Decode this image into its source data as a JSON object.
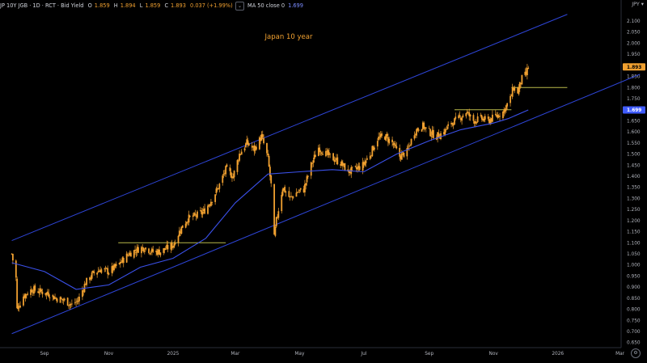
{
  "header": {
    "symbol": "JP 10Y JGB · 1D · RCT · Bid Yield",
    "open_label": "O",
    "open": "1.859",
    "high_label": "H",
    "high": "1.894",
    "low_label": "L",
    "low": "1.859",
    "close_label": "C",
    "close": "1.893",
    "change": "0.037 (+1.99%)"
  },
  "indicator": {
    "label": "MA 50 close 0",
    "value": "1.699"
  },
  "currency_label": "JPY",
  "colors": {
    "background": "#000000",
    "candle": "#f0a030",
    "channel": "#2e45d8",
    "ma": "#3a50e8",
    "support": "#b9b94a",
    "title": "#f0a030",
    "price_badge_bg": "#f0a030",
    "ma_badge_bg": "#3f5bff"
  },
  "chart_data": {
    "type": "candlestick",
    "title": "Japan 10 year",
    "x_ticks": [
      "Sep",
      "Nov",
      "2025",
      "Mar",
      "May",
      "Jul",
      "Sep",
      "Nov",
      "2026",
      "Mar"
    ],
    "y_ticks": [
      "0.650",
      "0.700",
      "0.750",
      "0.800",
      "0.850",
      "0.900",
      "0.950",
      "1.000",
      "1.050",
      "1.100",
      "1.150",
      "1.200",
      "1.250",
      "1.300",
      "1.350",
      "1.400",
      "1.450",
      "1.500",
      "1.550",
      "1.600",
      "1.650",
      "1.700",
      "1.750",
      "1.800",
      "1.850",
      "1.900",
      "1.950",
      "2.000",
      "2.050",
      "2.100",
      "2.150"
    ],
    "ylim": [
      0.63,
      2.17
    ],
    "last_price_badge": "1.893",
    "ma_badge": "1.699",
    "close_series": [
      [
        "2024-08-01",
        1.05
      ],
      [
        "2024-08-05",
        0.94
      ],
      [
        "2024-08-06",
        0.8
      ],
      [
        "2024-08-12",
        0.86
      ],
      [
        "2024-08-20",
        0.89
      ],
      [
        "2024-08-28",
        0.88
      ],
      [
        "2024-09-05",
        0.87
      ],
      [
        "2024-09-12",
        0.85
      ],
      [
        "2024-09-20",
        0.84
      ],
      [
        "2024-09-27",
        0.82
      ],
      [
        "2024-10-03",
        0.84
      ],
      [
        "2024-10-10",
        0.92
      ],
      [
        "2024-10-17",
        0.96
      ],
      [
        "2024-10-24",
        0.98
      ],
      [
        "2024-11-01",
        0.97
      ],
      [
        "2024-11-10",
        1.0
      ],
      [
        "2024-11-20",
        1.05
      ],
      [
        "2024-11-28",
        1.07
      ],
      [
        "2024-12-05",
        1.08
      ],
      [
        "2024-12-12",
        1.06
      ],
      [
        "2024-12-20",
        1.06
      ],
      [
        "2025-01-01",
        1.09
      ],
      [
        "2025-01-08",
        1.16
      ],
      [
        "2025-01-15",
        1.21
      ],
      [
        "2025-01-22",
        1.22
      ],
      [
        "2025-01-30",
        1.24
      ],
      [
        "2025-02-06",
        1.29
      ],
      [
        "2025-02-13",
        1.35
      ],
      [
        "2025-02-20",
        1.43
      ],
      [
        "2025-02-27",
        1.4
      ],
      [
        "2025-03-05",
        1.5
      ],
      [
        "2025-03-12",
        1.55
      ],
      [
        "2025-03-19",
        1.52
      ],
      [
        "2025-03-26",
        1.58
      ],
      [
        "2025-04-01",
        1.48
      ],
      [
        "2025-04-04",
        1.36
      ],
      [
        "2025-04-07",
        1.12
      ],
      [
        "2025-04-09",
        1.2
      ],
      [
        "2025-04-15",
        1.35
      ],
      [
        "2025-04-22",
        1.3
      ],
      [
        "2025-04-29",
        1.33
      ],
      [
        "2025-05-05",
        1.34
      ],
      [
        "2025-05-12",
        1.45
      ],
      [
        "2025-05-19",
        1.53
      ],
      [
        "2025-05-26",
        1.5
      ],
      [
        "2025-06-02",
        1.48
      ],
      [
        "2025-06-09",
        1.46
      ],
      [
        "2025-06-16",
        1.42
      ],
      [
        "2025-06-23",
        1.43
      ],
      [
        "2025-06-30",
        1.45
      ],
      [
        "2025-07-07",
        1.5
      ],
      [
        "2025-07-14",
        1.57
      ],
      [
        "2025-07-21",
        1.58
      ],
      [
        "2025-07-28",
        1.55
      ],
      [
        "2025-08-04",
        1.49
      ],
      [
        "2025-08-11",
        1.51
      ],
      [
        "2025-08-18",
        1.6
      ],
      [
        "2025-08-25",
        1.63
      ],
      [
        "2025-09-01",
        1.6
      ],
      [
        "2025-09-08",
        1.58
      ],
      [
        "2025-09-15",
        1.6
      ],
      [
        "2025-09-22",
        1.64
      ],
      [
        "2025-09-29",
        1.66
      ],
      [
        "2025-10-06",
        1.69
      ],
      [
        "2025-10-13",
        1.65
      ],
      [
        "2025-10-20",
        1.66
      ],
      [
        "2025-10-27",
        1.65
      ],
      [
        "2025-11-03",
        1.67
      ],
      [
        "2025-11-10",
        1.69
      ],
      [
        "2025-11-17",
        1.75
      ],
      [
        "2025-11-20",
        1.8
      ],
      [
        "2025-11-24",
        1.78
      ],
      [
        "2025-11-28",
        1.84
      ],
      [
        "2025-12-02",
        1.86
      ],
      [
        "2025-12-04",
        1.893
      ]
    ],
    "ma_series": [
      [
        "2024-08-01",
        1.01
      ],
      [
        "2024-09-01",
        0.97
      ],
      [
        "2024-10-01",
        0.89
      ],
      [
        "2024-11-01",
        0.91
      ],
      [
        "2024-12-01",
        0.99
      ],
      [
        "2025-01-01",
        1.03
      ],
      [
        "2025-02-01",
        1.12
      ],
      [
        "2025-03-01",
        1.28
      ],
      [
        "2025-04-01",
        1.41
      ],
      [
        "2025-05-01",
        1.42
      ],
      [
        "2025-06-01",
        1.43
      ],
      [
        "2025-07-01",
        1.42
      ],
      [
        "2025-08-01",
        1.5
      ],
      [
        "2025-09-01",
        1.56
      ],
      [
        "2025-10-01",
        1.61
      ],
      [
        "2025-11-01",
        1.64
      ],
      [
        "2025-11-15",
        1.66
      ],
      [
        "2025-12-04",
        1.699
      ]
    ],
    "channel_lines": [
      {
        "from": [
          "2024-08-01",
          1.11
        ],
        "to": [
          "2026-01-10",
          2.13
        ]
      },
      {
        "from": [
          "2024-08-01",
          0.69
        ],
        "to": [
          "2026-03-20",
          1.86
        ]
      }
    ],
    "support_lines": [
      {
        "from": [
          "2024-11-10",
          1.1
        ],
        "to": [
          "2025-02-20",
          1.1
        ]
      },
      {
        "from": [
          "2025-09-25",
          1.7
        ],
        "to": [
          "2025-11-18",
          1.7
        ]
      },
      {
        "from": [
          "2025-11-18",
          1.8
        ],
        "to": [
          "2026-01-10",
          1.8
        ]
      }
    ]
  }
}
